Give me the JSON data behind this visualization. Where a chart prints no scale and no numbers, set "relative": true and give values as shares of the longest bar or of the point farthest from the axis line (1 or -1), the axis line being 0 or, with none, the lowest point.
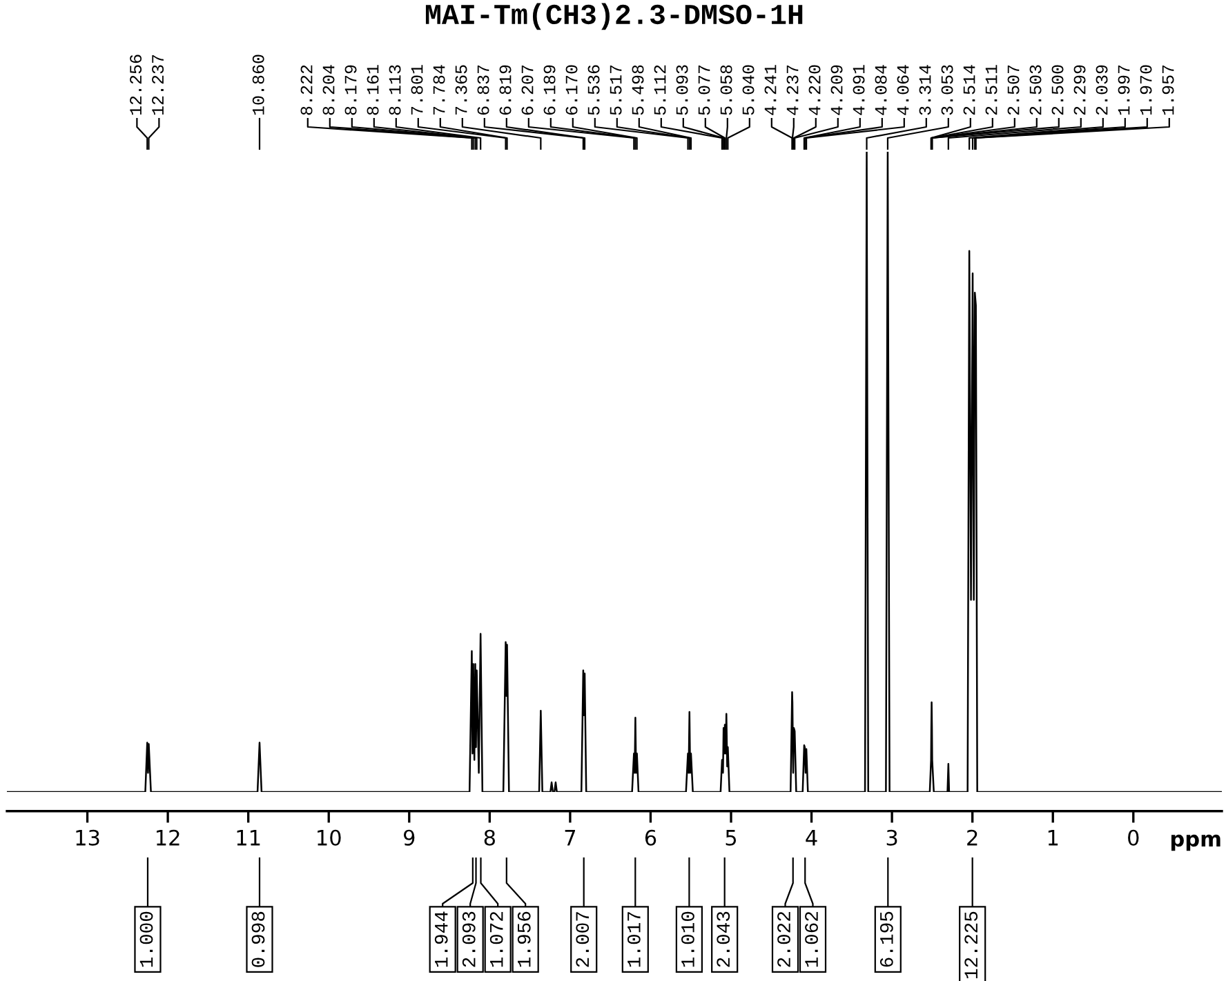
{
  "chart_data": {
    "type": "line",
    "title": "MAI-Tm(CH3)2.3-DMSO-1H",
    "xlabel": "ppm",
    "relative": true,
    "grid": false,
    "legend": false,
    "marker": "none",
    "line_style": "solid",
    "xlim": [
      14.0,
      -1.1
    ],
    "xticks": [
      13,
      12,
      11,
      10,
      9,
      8,
      7,
      6,
      5,
      4,
      3,
      2,
      1,
      0
    ],
    "series": [
      {
        "color": "#000000",
        "x": [
          14.0,
          12.28,
          12.256,
          12.246,
          12.237,
          12.21,
          10.885,
          10.86,
          10.835,
          8.25,
          8.222,
          8.213,
          8.204,
          8.19,
          8.179,
          8.17,
          8.161,
          8.135,
          8.113,
          8.09,
          7.83,
          7.801,
          7.792,
          7.784,
          7.76,
          7.385,
          7.365,
          7.345,
          7.245,
          7.23,
          7.215,
          7.195,
          7.18,
          7.165,
          6.86,
          6.837,
          6.828,
          6.819,
          6.8,
          6.23,
          6.207,
          6.198,
          6.189,
          6.18,
          6.17,
          6.15,
          5.56,
          5.536,
          5.527,
          5.517,
          5.508,
          5.498,
          5.475,
          5.13,
          5.112,
          5.1,
          5.093,
          5.085,
          5.077,
          5.067,
          5.058,
          5.048,
          5.04,
          5.02,
          4.26,
          4.241,
          4.237,
          4.228,
          4.22,
          4.209,
          4.19,
          4.11,
          4.091,
          4.084,
          4.074,
          4.064,
          4.045,
          3.335,
          3.314,
          3.295,
          3.075,
          3.053,
          3.03,
          2.53,
          2.514,
          2.511,
          2.507,
          2.503,
          2.5,
          2.48,
          2.31,
          2.299,
          2.29,
          2.06,
          2.039,
          2.018,
          1.997,
          1.983,
          1.97,
          1.957,
          1.94,
          -1.1
        ],
        "values": [
          0,
          0,
          0.077,
          0.03,
          0.075,
          0,
          0,
          0.077,
          0,
          0,
          0.22,
          0.06,
          0.2,
          0.05,
          0.2,
          0.07,
          0.19,
          0.03,
          0.247,
          0,
          0,
          0.234,
          0.15,
          0.23,
          0,
          0,
          0.127,
          0,
          0,
          0.015,
          0,
          0,
          0.015,
          0,
          0,
          0.19,
          0.12,
          0.185,
          0,
          0,
          0.06,
          0.03,
          0.116,
          0.03,
          0.06,
          0,
          0,
          0.06,
          0.03,
          0.125,
          0.03,
          0.06,
          0,
          0,
          0.05,
          0.03,
          0.1,
          0.06,
          0.105,
          0.06,
          0.122,
          0.04,
          0.07,
          0,
          0,
          0.156,
          0.14,
          0.03,
          0.1,
          0.095,
          0,
          0,
          0.073,
          0.07,
          0.03,
          0.067,
          0,
          0,
          1.0,
          0,
          0,
          1.0,
          0,
          0,
          0.05,
          0.1,
          0.14,
          0.1,
          0.05,
          0,
          0,
          0.044,
          0,
          0,
          0.845,
          0.3,
          0.81,
          0.3,
          0.78,
          0.76,
          0,
          0
        ]
      }
    ],
    "annotations": [
      {
        "text": "12.256",
        "x": 12.256
      },
      {
        "text": "12.237",
        "x": 12.237
      },
      {
        "text": "10.860",
        "x": 10.86
      },
      {
        "text": "8.222",
        "x": 8.222
      },
      {
        "text": "8.204",
        "x": 8.204
      },
      {
        "text": "8.179",
        "x": 8.179
      },
      {
        "text": "8.161",
        "x": 8.161
      },
      {
        "text": "8.113",
        "x": 8.113
      },
      {
        "text": "7.801",
        "x": 7.801
      },
      {
        "text": "7.784",
        "x": 7.784
      },
      {
        "text": "7.365",
        "x": 7.365
      },
      {
        "text": "6.837",
        "x": 6.837
      },
      {
        "text": "6.819",
        "x": 6.819
      },
      {
        "text": "6.207",
        "x": 6.207
      },
      {
        "text": "6.189",
        "x": 6.189
      },
      {
        "text": "6.170",
        "x": 6.17
      },
      {
        "text": "5.536",
        "x": 5.536
      },
      {
        "text": "5.517",
        "x": 5.517
      },
      {
        "text": "5.498",
        "x": 5.498
      },
      {
        "text": "5.112",
        "x": 5.112
      },
      {
        "text": "5.093",
        "x": 5.093
      },
      {
        "text": "5.077",
        "x": 5.077
      },
      {
        "text": "5.058",
        "x": 5.058
      },
      {
        "text": "5.040",
        "x": 5.04
      },
      {
        "text": "4.241",
        "x": 4.241
      },
      {
        "text": "4.237",
        "x": 4.237
      },
      {
        "text": "4.220",
        "x": 4.22
      },
      {
        "text": "4.209",
        "x": 4.209
      },
      {
        "text": "4.091",
        "x": 4.091
      },
      {
        "text": "4.084",
        "x": 4.084
      },
      {
        "text": "4.064",
        "x": 4.064
      },
      {
        "text": "3.314",
        "x": 3.314
      },
      {
        "text": "3.053",
        "x": 3.053
      },
      {
        "text": "2.514",
        "x": 2.514
      },
      {
        "text": "2.511",
        "x": 2.511
      },
      {
        "text": "2.507",
        "x": 2.507
      },
      {
        "text": "2.503",
        "x": 2.503
      },
      {
        "text": "2.500",
        "x": 2.5
      },
      {
        "text": "2.299",
        "x": 2.299
      },
      {
        "text": "2.039",
        "x": 2.039
      },
      {
        "text": "1.997",
        "x": 1.997
      },
      {
        "text": "1.970",
        "x": 1.97
      },
      {
        "text": "1.957",
        "x": 1.957
      },
      {
        "text": "1.000",
        "x": 12.25
      },
      {
        "text": "0.998",
        "x": 10.86
      },
      {
        "text": "1.944",
        "x": 8.21
      },
      {
        "text": "2.093",
        "x": 8.17
      },
      {
        "text": "1.072",
        "x": 8.11
      },
      {
        "text": "1.956",
        "x": 7.79
      },
      {
        "text": "2.007",
        "x": 6.83
      },
      {
        "text": "1.017",
        "x": 6.19
      },
      {
        "text": "1.010",
        "x": 5.52
      },
      {
        "text": "2.043",
        "x": 5.08
      },
      {
        "text": "2.022",
        "x": 4.23
      },
      {
        "text": "1.062",
        "x": 4.08
      },
      {
        "text": "6.195",
        "x": 3.05
      },
      {
        "text": "12.225",
        "x": 2.0
      }
    ]
  }
}
